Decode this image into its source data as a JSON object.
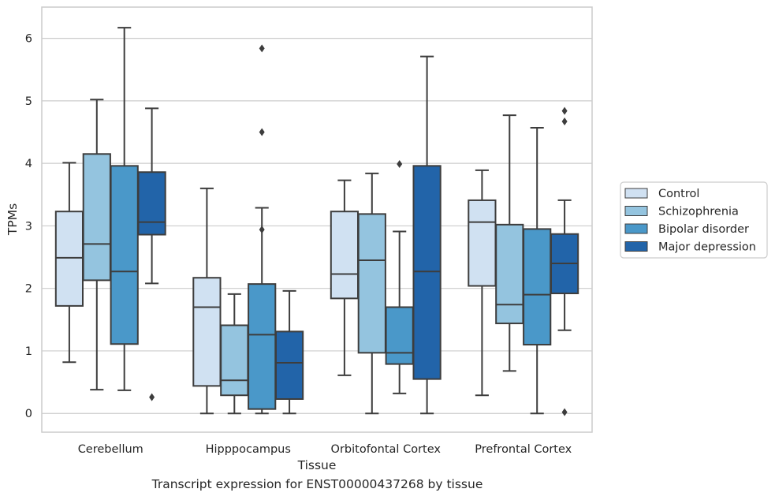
{
  "caption": "Transcript expression for ENST00000437268 by tissue",
  "chart_data": {
    "type": "box",
    "xlabel": "Tissue",
    "ylabel": "TPMs",
    "ylim": [
      -0.3,
      6.5
    ],
    "yticks": [
      0,
      1,
      2,
      3,
      4,
      5,
      6
    ],
    "grid": "horizontal",
    "legend_position": "right",
    "categories": [
      "Cerebellum",
      "Hipppocampus",
      "Orbitofontal Cortex",
      "Prefrontal Cortex"
    ],
    "series": [
      {
        "name": "Control",
        "color": "#d0e1f2",
        "boxes": [
          {
            "whislo": 0.82,
            "q1": 1.72,
            "med": 2.49,
            "q3": 3.23,
            "whishi": 4.01,
            "fliers": []
          },
          {
            "whislo": 0.0,
            "q1": 0.44,
            "med": 1.7,
            "q3": 2.17,
            "whishi": 3.6,
            "fliers": []
          },
          {
            "whislo": 0.61,
            "q1": 1.84,
            "med": 2.23,
            "q3": 3.23,
            "whishi": 3.73,
            "fliers": []
          },
          {
            "whislo": 0.29,
            "q1": 2.04,
            "med": 3.06,
            "q3": 3.41,
            "whishi": 3.89,
            "fliers": []
          }
        ]
      },
      {
        "name": "Schizophrenia",
        "color": "#94c4df",
        "boxes": [
          {
            "whislo": 0.38,
            "q1": 2.13,
            "med": 2.71,
            "q3": 4.15,
            "whishi": 5.02,
            "fliers": []
          },
          {
            "whislo": 0.0,
            "q1": 0.29,
            "med": 0.53,
            "q3": 1.41,
            "whishi": 1.91,
            "fliers": []
          },
          {
            "whislo": 0.0,
            "q1": 0.97,
            "med": 2.45,
            "q3": 3.19,
            "whishi": 3.84,
            "fliers": []
          },
          {
            "whislo": 0.68,
            "q1": 1.44,
            "med": 1.74,
            "q3": 3.02,
            "whishi": 4.77,
            "fliers": []
          }
        ]
      },
      {
        "name": "Bipolar disorder",
        "color": "#4a98c9",
        "boxes": [
          {
            "whislo": 0.37,
            "q1": 1.11,
            "med": 2.27,
            "q3": 3.96,
            "whishi": 6.17,
            "fliers": []
          },
          {
            "whislo": 0.0,
            "q1": 0.07,
            "med": 1.26,
            "q3": 2.07,
            "whishi": 3.29,
            "fliers": [
              5.84,
              4.5,
              2.94
            ]
          },
          {
            "whislo": 0.32,
            "q1": 0.79,
            "med": 0.97,
            "q3": 1.7,
            "whishi": 2.91,
            "fliers": [
              3.99
            ]
          },
          {
            "whislo": 0.0,
            "q1": 1.1,
            "med": 1.9,
            "q3": 2.95,
            "whishi": 4.57,
            "fliers": []
          }
        ]
      },
      {
        "name": "Major depression",
        "color": "#2264a9",
        "boxes": [
          {
            "whislo": 2.08,
            "q1": 2.86,
            "med": 3.06,
            "q3": 3.86,
            "whishi": 4.88,
            "fliers": [
              0.26
            ]
          },
          {
            "whislo": 0.0,
            "q1": 0.23,
            "med": 0.81,
            "q3": 1.31,
            "whishi": 1.96,
            "fliers": []
          },
          {
            "whislo": 0.0,
            "q1": 0.55,
            "med": 2.27,
            "q3": 3.96,
            "whishi": 5.71,
            "fliers": []
          },
          {
            "whislo": 1.33,
            "q1": 1.92,
            "med": 2.4,
            "q3": 2.87,
            "whishi": 3.41,
            "fliers": [
              4.84,
              4.67,
              0.02
            ]
          }
        ]
      }
    ]
  },
  "colors": {
    "box_edge": "#3d3d3d",
    "grid": "#cccccc",
    "frame": "#cccccc",
    "text": "#262626"
  }
}
